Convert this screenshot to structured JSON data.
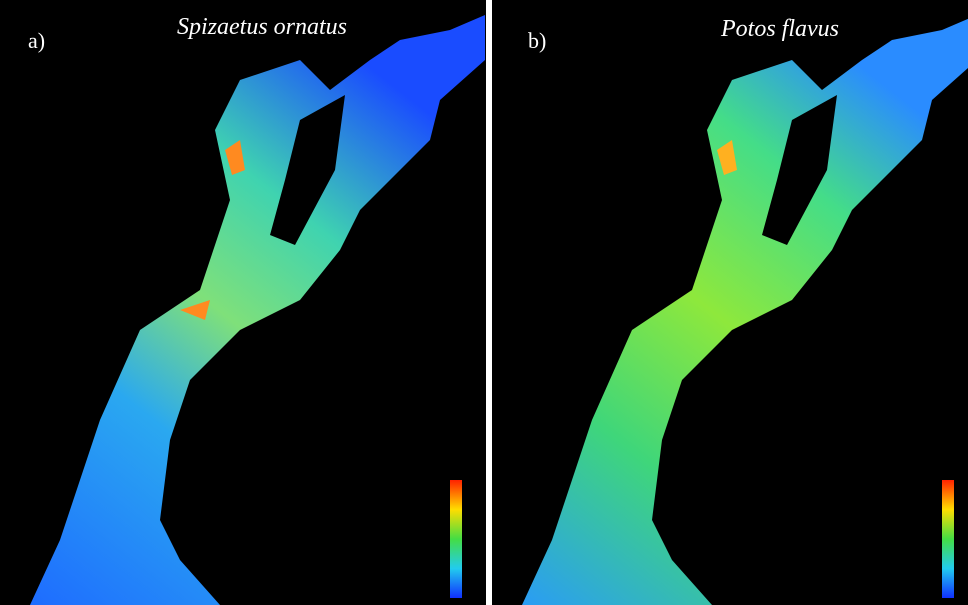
{
  "panels": [
    {
      "label": "a)",
      "title": "Spizaetus ornatus"
    },
    {
      "label": "b)",
      "title": "Potos flavus"
    }
  ]
}
